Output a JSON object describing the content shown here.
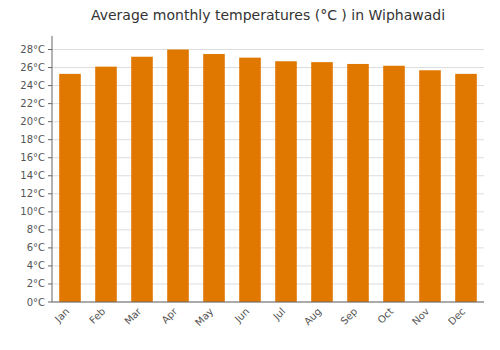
{
  "chart_data": {
    "type": "bar",
    "title": "Average monthly temperatures (°C ) in Wiphawadi",
    "categories": [
      "Jan",
      "Feb",
      "Mar",
      "Apr",
      "May",
      "Jun",
      "Jul",
      "Aug",
      "Sep",
      "Oct",
      "Nov",
      "Dec"
    ],
    "values": [
      25.3,
      26.1,
      27.2,
      28.0,
      27.5,
      27.1,
      26.7,
      26.6,
      26.4,
      26.2,
      25.7,
      25.3
    ],
    "color": "#E07800",
    "ylim": [
      0,
      29.5
    ],
    "yticks": [
      {
        "value": 0,
        "label": "0°C"
      },
      {
        "value": 2,
        "label": "2°C"
      },
      {
        "value": 4,
        "label": "4°C"
      },
      {
        "value": 6,
        "label": "6°C"
      },
      {
        "value": 8,
        "label": "8°C"
      },
      {
        "value": 10,
        "label": "10°C"
      },
      {
        "value": 12,
        "label": "12°C"
      },
      {
        "value": 14,
        "label": "14°C"
      },
      {
        "value": 16,
        "label": "16°C"
      },
      {
        "value": 18,
        "label": "18°C"
      },
      {
        "value": 20,
        "label": "20°C"
      },
      {
        "value": 22,
        "label": "22°C"
      },
      {
        "value": 24,
        "label": "24°C"
      },
      {
        "value": 26,
        "label": "26°C"
      },
      {
        "value": 28,
        "label": "28°C"
      }
    ],
    "grid": true
  }
}
